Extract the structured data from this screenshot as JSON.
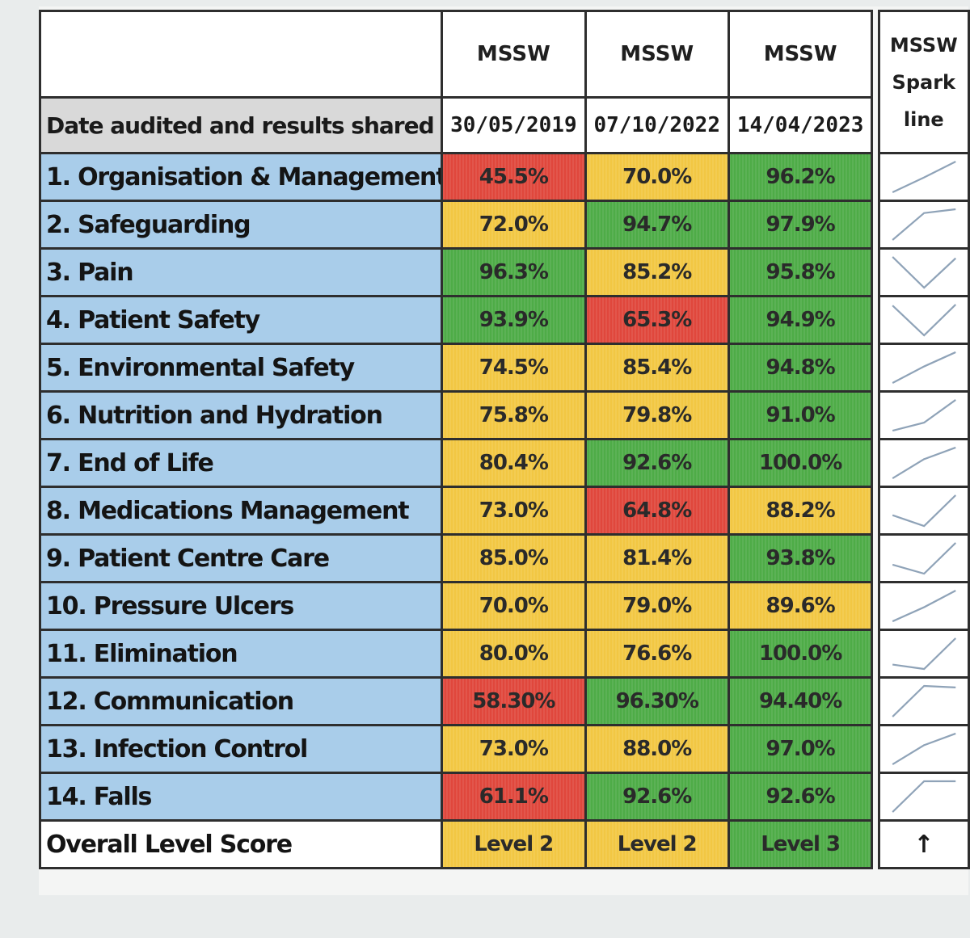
{
  "header": {
    "site_labels": [
      "MSSW",
      "MSSW",
      "MSSW"
    ],
    "spark_label": "MSSW Spark line",
    "date_label": "Date audited and results shared :",
    "dates": [
      "30/05/2019",
      "07/10/2022",
      "14/04/2023"
    ]
  },
  "categories": [
    {
      "label": "1.  Organisation & Management",
      "scores": [
        "45.5%",
        "70.0%",
        "96.2%"
      ],
      "levels": [
        "red",
        "amber",
        "green"
      ],
      "trend": [
        45.5,
        70.0,
        96.2
      ]
    },
    {
      "label": "2.  Safeguarding",
      "scores": [
        "72.0%",
        "94.7%",
        "97.9%"
      ],
      "levels": [
        "amber",
        "green",
        "green"
      ],
      "trend": [
        72.0,
        94.7,
        97.9
      ]
    },
    {
      "label": "3.  Pain",
      "scores": [
        "96.3%",
        "85.2%",
        "95.8%"
      ],
      "levels": [
        "green",
        "amber",
        "green"
      ],
      "trend": [
        96.3,
        85.2,
        95.8
      ]
    },
    {
      "label": "4.  Patient Safety",
      "scores": [
        "93.9%",
        "65.3%",
        "94.9%"
      ],
      "levels": [
        "green",
        "red",
        "green"
      ],
      "trend": [
        93.9,
        65.3,
        94.9
      ]
    },
    {
      "label": "5.  Environmental Safety",
      "scores": [
        "74.5%",
        "85.4%",
        "94.8%"
      ],
      "levels": [
        "amber",
        "amber",
        "green"
      ],
      "trend": [
        74.5,
        85.4,
        94.8
      ]
    },
    {
      "label": "6.  Nutrition and Hydration",
      "scores": [
        "75.8%",
        "79.8%",
        "91.0%"
      ],
      "levels": [
        "amber",
        "amber",
        "green"
      ],
      "trend": [
        75.8,
        79.8,
        91.0
      ]
    },
    {
      "label": "7.  End of Life",
      "scores": [
        "80.4%",
        "92.6%",
        "100.0%"
      ],
      "levels": [
        "amber",
        "green",
        "green"
      ],
      "trend": [
        80.4,
        92.6,
        100.0
      ]
    },
    {
      "label": "8.  Medications Management",
      "scores": [
        "73.0%",
        "64.8%",
        "88.2%"
      ],
      "levels": [
        "amber",
        "red",
        "amber"
      ],
      "trend": [
        73.0,
        64.8,
        88.2
      ]
    },
    {
      "label": "9.  Patient Centre Care",
      "scores": [
        "85.0%",
        "81.4%",
        "93.8%"
      ],
      "levels": [
        "amber",
        "amber",
        "green"
      ],
      "trend": [
        85.0,
        81.4,
        93.8
      ]
    },
    {
      "label": "10. Pressure Ulcers",
      "scores": [
        "70.0%",
        "79.0%",
        "89.6%"
      ],
      "levels": [
        "amber",
        "amber",
        "amber"
      ],
      "trend": [
        70.0,
        79.0,
        89.6
      ]
    },
    {
      "label": "11. Elimination",
      "scores": [
        "80.0%",
        "76.6%",
        "100.0%"
      ],
      "levels": [
        "amber",
        "amber",
        "green"
      ],
      "trend": [
        80.0,
        76.6,
        100.0
      ]
    },
    {
      "label": "12. Communication",
      "scores": [
        "58.30%",
        "96.30%",
        "94.40%"
      ],
      "levels": [
        "red",
        "green",
        "green"
      ],
      "trend": [
        58.3,
        96.3,
        94.4
      ]
    },
    {
      "label": "13. Infection Control",
      "scores": [
        "73.0%",
        "88.0%",
        "97.0%"
      ],
      "levels": [
        "amber",
        "amber",
        "green"
      ],
      "trend": [
        73.0,
        88.0,
        97.0
      ]
    },
    {
      "label": "14. Falls",
      "scores": [
        "61.1%",
        "92.6%",
        "92.6%"
      ],
      "levels": [
        "red",
        "green",
        "green"
      ],
      "trend": [
        61.1,
        92.6,
        92.6
      ]
    }
  ],
  "overall": {
    "label": "Overall Level Score",
    "scores": [
      "Level 2",
      "Level 2",
      "Level 3"
    ],
    "levels": [
      "amber",
      "amber",
      "green"
    ],
    "trend_symbol": "↑"
  },
  "colors": {
    "red": "#e0473c",
    "amber": "#f2c743",
    "green": "#4eac47",
    "category_bg": "#a9cdea",
    "spark_line": "#8fa3b8"
  }
}
